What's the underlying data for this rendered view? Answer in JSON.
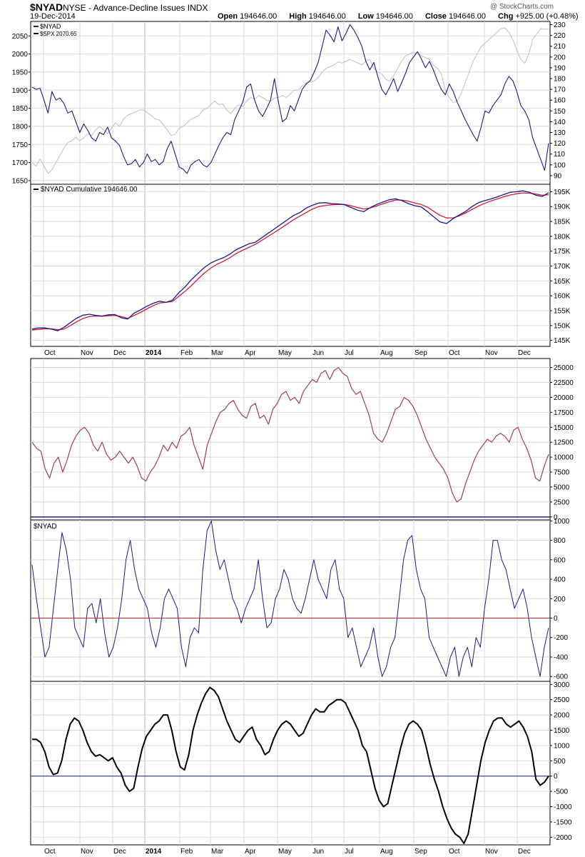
{
  "header": {
    "symbol": "$NYAD",
    "description": "NYSE - Advance-Decline Issues INDX",
    "brand": "@ StockCharts.com",
    "date": "19-Dec-2014",
    "open_label": "Open",
    "open": "194646.00",
    "high_label": "High",
    "high": "194646.00",
    "low_label": "Low",
    "low": "194646.00",
    "close_label": "Close",
    "close": "194646.00",
    "chg_label": "Chg",
    "chg": "+925.00 (+0.48%)",
    "chg_arrow": "triangle-up-icon"
  },
  "colors": {
    "nyad_blue": "#1a1a8c",
    "spx_gray": "#c8c8c8",
    "ma_red": "#d41b3c",
    "osc_maroon": "#a33a63",
    "zero_line_red": "#c62828",
    "zero_line_navy": "#1a237e",
    "black": "#000000",
    "grid": "#d8d8d8"
  },
  "x_axis": {
    "months": [
      "Oct",
      "Nov",
      "Dec",
      "2014",
      "Feb",
      "Mar",
      "Apr",
      "May",
      "Jun",
      "Jul",
      "Aug",
      "Sep",
      "Oct",
      "Nov",
      "Dec"
    ]
  },
  "chart_data": [
    {
      "type": "line",
      "panel": "price",
      "legend": [
        "$NYAD",
        "$SPX 2070.65"
      ],
      "y_left_ticks": [
        1650,
        1700,
        1750,
        1800,
        1850,
        1900,
        1950,
        2000,
        2050
      ],
      "y_left_range": [
        1640,
        2090
      ],
      "y_right_ticks": [
        90,
        100,
        110,
        120,
        130,
        140,
        150,
        160,
        170,
        180,
        190,
        200,
        210,
        220,
        230
      ],
      "y_right_range": [
        82,
        233
      ],
      "series": [
        {
          "name": "$NYAD",
          "axis": "right",
          "values": [
            172,
            170,
            171,
            160,
            148,
            168,
            160,
            162,
            157,
            148,
            150,
            140,
            130,
            138,
            132,
            125,
            122,
            130,
            128,
            135,
            125,
            122,
            118,
            108,
            100,
            101,
            105,
            98,
            102,
            110,
            103,
            105,
            100,
            103,
            115,
            122,
            110,
            98,
            96,
            92,
            100,
            103,
            105,
            100,
            98,
            102,
            110,
            118,
            125,
            130,
            128,
            142,
            150,
            158,
            172,
            175,
            160,
            150,
            145,
            152,
            160,
            180,
            158,
            140,
            143,
            155,
            150,
            160,
            170,
            175,
            178,
            186,
            195,
            210,
            225,
            220,
            214,
            228,
            215,
            222,
            230,
            225,
            218,
            210,
            196,
            188,
            195,
            182,
            170,
            165,
            172,
            180,
            168,
            176,
            185,
            195,
            200,
            205,
            198,
            190,
            196,
            188,
            178,
            170,
            165,
            175,
            168,
            158,
            150,
            142,
            135,
            128,
            122,
            135,
            150,
            148,
            155,
            160,
            165,
            175,
            182,
            178,
            168,
            155,
            150,
            142,
            125,
            115,
            105,
            95,
            120
          ]
        },
        {
          "name": "$SPX",
          "axis": "left",
          "values": [
            1700,
            1690,
            1710,
            1690,
            1670,
            1680,
            1700,
            1720,
            1740,
            1755,
            1760,
            1770,
            1760,
            1768,
            1780,
            1775,
            1790,
            1800,
            1790,
            1780,
            1795,
            1810,
            1800,
            1820,
            1830,
            1835,
            1840,
            1845,
            1845,
            1838,
            1830,
            1820,
            1818,
            1805,
            1790,
            1775,
            1778,
            1795,
            1800,
            1810,
            1820,
            1825,
            1830,
            1845,
            1850,
            1860,
            1870,
            1860,
            1862,
            1845,
            1835,
            1850,
            1860,
            1855,
            1870,
            1880,
            1875,
            1885,
            1880,
            1872,
            1870,
            1878,
            1880,
            1885,
            1880,
            1890,
            1900,
            1900,
            1912,
            1920,
            1923,
            1925,
            1935,
            1950,
            1960,
            1965,
            1970,
            1978,
            1975,
            1980,
            1985,
            1980,
            1975,
            1970,
            1980,
            1985,
            1960,
            1950,
            1945,
            1930,
            1925,
            1940,
            1960,
            1980,
            1995,
            2000,
            2005,
            2000,
            1995,
            1990,
            1985,
            1970,
            1960,
            1945,
            1900,
            1880,
            1865,
            1870,
            1890,
            1920,
            1950,
            1980,
            2000,
            2020,
            2030,
            2040,
            2050,
            2060,
            2070,
            2072,
            2060,
            2040,
            2010,
            1985,
            1975,
            2000,
            2040,
            2055,
            2070,
            2068,
            2070
          ]
        }
      ]
    },
    {
      "type": "line",
      "panel": "cumulative",
      "legend": [
        "$NYAD Cumulative 194646.00"
      ],
      "y_ticks_labels": [
        "145K",
        "150K",
        "155K",
        "160K",
        "165K",
        "170K",
        "175K",
        "180K",
        "185K",
        "190K",
        "195K"
      ],
      "y_ticks_values": [
        145000,
        150000,
        155000,
        160000,
        165000,
        170000,
        175000,
        180000,
        185000,
        190000,
        195000
      ],
      "y_range": [
        143000,
        197500
      ],
      "series": [
        {
          "name": "$NYAD Cumulative",
          "values": [
            148800,
            149200,
            149200,
            148800,
            148200,
            149400,
            151000,
            152500,
            153500,
            153800,
            153400,
            153200,
            153600,
            153700,
            152600,
            152200,
            154200,
            155300,
            156500,
            157500,
            158200,
            157800,
            158500,
            161000,
            163000,
            165500,
            167500,
            169500,
            171000,
            172000,
            172800,
            174000,
            175500,
            176500,
            177500,
            178000,
            179500,
            181000,
            182500,
            184000,
            185500,
            187000,
            188000,
            189500,
            190500,
            191200,
            191300,
            191000,
            190900,
            190600,
            189700,
            188800,
            188300,
            189600,
            190700,
            191500,
            192300,
            192600,
            192000,
            191000,
            190300,
            189900,
            188300,
            186500,
            184800,
            184300,
            185900,
            187200,
            188400,
            190000,
            191300,
            192000,
            192600,
            193300,
            194100,
            194800,
            195000,
            195300,
            194800,
            193800,
            193400,
            194646
          ]
        },
        {
          "name": "Moving Average",
          "values": [
            148500,
            148700,
            148900,
            148900,
            148600,
            148800,
            150000,
            151300,
            152400,
            153000,
            153200,
            153100,
            153300,
            153400,
            153000,
            152400,
            153400,
            154400,
            155600,
            156700,
            157600,
            157800,
            158100,
            159800,
            161500,
            163500,
            165600,
            167600,
            169300,
            170600,
            171600,
            172800,
            174200,
            175300,
            176300,
            177300,
            178600,
            180000,
            181300,
            182700,
            184100,
            185600,
            186800,
            188000,
            189200,
            190000,
            190400,
            190600,
            190700,
            190700,
            190300,
            189700,
            189200,
            189500,
            190200,
            190900,
            191600,
            192200,
            192200,
            191800,
            191200,
            190700,
            189800,
            188400,
            187000,
            186200,
            186200,
            186900,
            187900,
            189000,
            190200,
            191100,
            191900,
            192600,
            193300,
            193900,
            194300,
            194600,
            194500,
            194200,
            193800,
            194000
          ]
        }
      ]
    },
    {
      "type": "line",
      "panel": "oscillator",
      "legend": [],
      "y_ticks": [
        0,
        2500,
        5000,
        7500,
        10000,
        12500,
        15000,
        17500,
        20000,
        22500,
        25000
      ],
      "y_range": [
        -500,
        26500
      ],
      "series": [
        {
          "name": "",
          "values": [
            12500,
            11500,
            11000,
            8000,
            6500,
            9000,
            10000,
            7500,
            9500,
            12000,
            13500,
            14500,
            15000,
            14000,
            12000,
            11000,
            12500,
            10500,
            9500,
            10000,
            11000,
            10000,
            9000,
            10000,
            8500,
            6500,
            6000,
            7500,
            8500,
            10000,
            12000,
            11000,
            12500,
            11500,
            13500,
            14000,
            15000,
            12000,
            10000,
            8000,
            12000,
            14000,
            16000,
            17500,
            18000,
            19000,
            19500,
            18000,
            17000,
            16500,
            18500,
            19000,
            16500,
            17000,
            15500,
            18000,
            19000,
            20500,
            21000,
            19500,
            20000,
            19000,
            21000,
            22000,
            23000,
            22500,
            24000,
            24500,
            23000,
            24500,
            25000,
            24000,
            23500,
            21500,
            20500,
            21000,
            19000,
            17000,
            14000,
            13000,
            12500,
            14000,
            16000,
            18000,
            18500,
            20000,
            19500,
            18500,
            17000,
            15000,
            13000,
            11500,
            10000,
            9000,
            8000,
            6500,
            4000,
            2500,
            3000,
            5500,
            7500,
            9500,
            11000,
            12000,
            13000,
            12500,
            13500,
            14000,
            13500,
            12500,
            14500,
            15000,
            13000,
            11500,
            9500,
            6500,
            6000,
            8500,
            10500
          ]
        }
      ],
      "zero_line": 0
    },
    {
      "type": "line",
      "panel": "nyad_daily",
      "legend": [
        "$NYAD"
      ],
      "y_ticks": [
        -600,
        -400,
        -200,
        0,
        200,
        400,
        600,
        800,
        1000
      ],
      "y_range": [
        -650,
        1010
      ],
      "series": [
        {
          "name": "$NYAD",
          "values": [
            550,
            200,
            -100,
            -400,
            -300,
            100,
            500,
            880,
            700,
            400,
            -100,
            -200,
            -300,
            100,
            150,
            -50,
            200,
            -150,
            -400,
            -300,
            -100,
            200,
            600,
            800,
            500,
            300,
            200,
            100,
            -150,
            -300,
            -100,
            200,
            300,
            200,
            100,
            -300,
            -500,
            -200,
            -100,
            -150,
            500,
            900,
            1000,
            700,
            500,
            600,
            400,
            200,
            100,
            -50,
            100,
            200,
            300,
            600,
            200,
            -100,
            -50,
            200,
            300,
            500,
            400,
            200,
            100,
            50,
            200,
            400,
            600,
            400,
            300,
            200,
            500,
            600,
            300,
            200,
            -200,
            -100,
            -300,
            -500,
            -400,
            -300,
            -100,
            -400,
            -600,
            -500,
            -300,
            -200,
            200,
            600,
            800,
            850,
            500,
            300,
            200,
            -200,
            -300,
            -400,
            -500,
            -600,
            -400,
            -300,
            -600,
            -400,
            -300,
            -500,
            -200,
            -300,
            100,
            400,
            800,
            800,
            600,
            500,
            300,
            100,
            200,
            300,
            100,
            -200,
            -400,
            -600,
            -300,
            -100
          ]
        }
      ],
      "zero_line": 0
    },
    {
      "type": "line",
      "panel": "smoothed",
      "legend": [],
      "y_ticks": [
        -2000,
        -1500,
        -1000,
        -500,
        0,
        500,
        1000,
        1500,
        2000,
        2500,
        3000
      ],
      "y_range": [
        -2250,
        3100
      ],
      "series": [
        {
          "name": "",
          "values": [
            1200,
            1200,
            1100,
            800,
            300,
            50,
            100,
            500,
            1200,
            1700,
            1900,
            1800,
            1500,
            1100,
            800,
            650,
            700,
            600,
            500,
            600,
            300,
            100,
            -300,
            -500,
            -400,
            300,
            900,
            1300,
            1500,
            1700,
            1800,
            2000,
            2000,
            1500,
            800,
            300,
            200,
            700,
            1500,
            2000,
            2400,
            2700,
            2900,
            2800,
            2600,
            2200,
            1800,
            1500,
            1200,
            1100,
            1300,
            1500,
            1600,
            1200,
            1000,
            700,
            800,
            1200,
            1500,
            1700,
            1800,
            1700,
            1500,
            1300,
            1400,
            1700,
            2000,
            2200,
            2100,
            2100,
            2300,
            2400,
            2500,
            2500,
            2400,
            2100,
            1800,
            1500,
            1000,
            800,
            200,
            -400,
            -800,
            -1000,
            -900,
            -300,
            300,
            900,
            1400,
            1700,
            1800,
            1700,
            1500,
            1000,
            400,
            -100,
            -500,
            -1000,
            -1400,
            -1700,
            -1900,
            -2000,
            -2200,
            -1900,
            -1100,
            -300,
            500,
            1100,
            1500,
            1800,
            1900,
            1900,
            1700,
            1600,
            1700,
            1800,
            1600,
            1300,
            800,
            -100,
            -300,
            -200,
            0
          ]
        }
      ],
      "zero_line": 0
    }
  ]
}
